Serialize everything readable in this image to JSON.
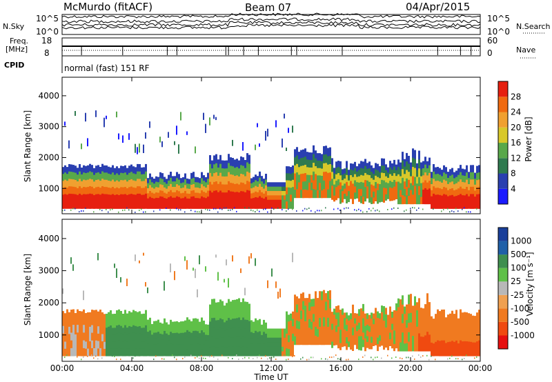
{
  "header": {
    "station": "McMurdo (fitACF)",
    "beam": "Beam 07",
    "date": "04/Apr/2015"
  },
  "noise_panel": {
    "left_label": "N.Sky",
    "right_label": "N.Search",
    "left_ticks": [
      "10^5",
      "10^0"
    ],
    "right_ticks": [
      "10^5",
      "10^0"
    ]
  },
  "freq_panel": {
    "left_label_1": "Freq.",
    "left_label_2": "[MHz]",
    "left_ticks": [
      "18",
      "8"
    ],
    "right_label": "Nave",
    "right_ticks": [
      "60",
      "0"
    ]
  },
  "cpid": {
    "label": "CPID",
    "text": "normal (fast) 151 RF"
  },
  "colors": {
    "power": [
      "#1a1aff",
      "#2a3fb0",
      "#2f7a4f",
      "#58a84a",
      "#d8c82a",
      "#f0a030",
      "#f06a10",
      "#e62010"
    ],
    "velocity": [
      "#e61010",
      "#f04a10",
      "#f07a20",
      "#f0a050",
      "#b8b8b8",
      "#5fc048",
      "#3f8f4f",
      "#2060a8",
      "#1a3f9a"
    ]
  },
  "chart_data": [
    {
      "type": "heatmap",
      "panel": "power",
      "xlabel": "",
      "ylabel": "Slant Range [km]",
      "xlim": [
        "00:00",
        "24:00"
      ],
      "ylim": [
        180,
        4600
      ],
      "yticks": [
        1000,
        2000,
        3000,
        4000
      ],
      "colorbar_label": "Power [dB]",
      "colorbar_ticks": [
        4,
        8,
        12,
        16,
        20,
        24,
        28
      ],
      "colorbar_range": [
        0,
        32
      ],
      "grid": false
    },
    {
      "type": "heatmap",
      "panel": "velocity",
      "xlabel": "Time UT",
      "ylabel": "Slant Range [km]",
      "x_ticks": [
        "00:00",
        "04:00",
        "08:00",
        "12:00",
        "16:00",
        "20:00",
        "00:00"
      ],
      "ylim": [
        180,
        4600
      ],
      "yticks": [
        1000,
        2000,
        3000,
        4000
      ],
      "colorbar_label": "Velocity [m s⁻¹]",
      "colorbar_ticks": [
        "1000",
        "500",
        "100",
        "25",
        "-25",
        "-100",
        "-500",
        "-1000"
      ],
      "grid": false
    }
  ]
}
